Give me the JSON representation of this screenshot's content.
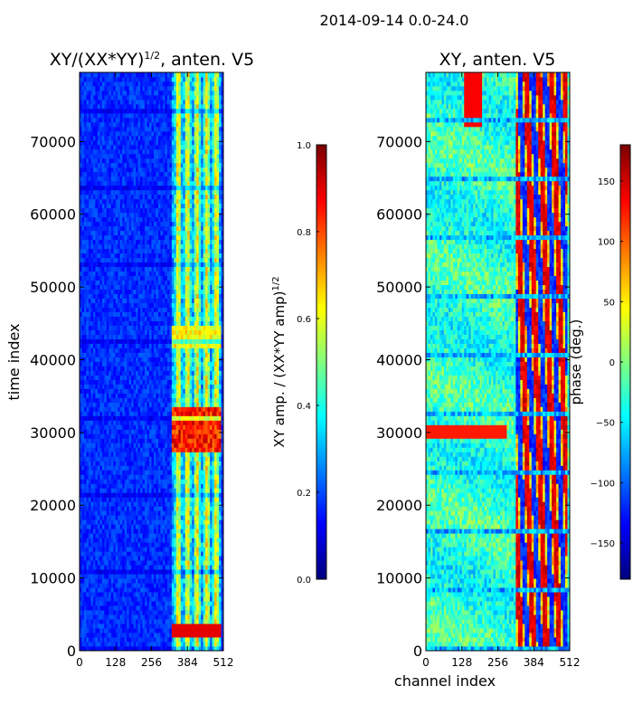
{
  "figure": {
    "suptitle": "2014-09-14 0.0-24.0"
  },
  "chart_data": [
    {
      "type": "heatmap",
      "title_main": "XY/(XX*YY)",
      "title_sup": "1/2",
      "title_rest": ", anten. V5",
      "xlabel": "",
      "ylabel": "time index",
      "xlim": [
        0,
        512
      ],
      "ylim": [
        0,
        79500
      ],
      "xticks": [
        0,
        128,
        256,
        384,
        512
      ],
      "xtick_labels": [
        "0",
        "128",
        "256",
        "384",
        "512"
      ],
      "yticks": [
        0,
        10000,
        20000,
        30000,
        40000,
        50000,
        60000,
        70000
      ],
      "ytick_labels": [
        "0",
        "10000",
        "20000",
        "30000",
        "40000",
        "50000",
        "60000",
        "70000"
      ],
      "colorscale": "jet",
      "colorbar": {
        "label_main": "XY amp. / (XX*YY amp)",
        "label_sup": "1/2",
        "range": [
          0.0,
          1.0
        ],
        "ticks": [
          0.0,
          0.2,
          0.4,
          0.6,
          0.8,
          1.0
        ],
        "tick_labels": [
          "0.0",
          "0.2",
          "0.4",
          "0.6",
          "0.8",
          "1.0"
        ]
      }
    },
    {
      "type": "heatmap",
      "title_main": "XY, anten. V5",
      "xlabel": "channel index",
      "ylabel": "",
      "xlim": [
        0,
        512
      ],
      "ylim": [
        0,
        79500
      ],
      "xticks": [
        0,
        128,
        256,
        384,
        512
      ],
      "xtick_labels": [
        "0",
        "128",
        "256",
        "384",
        "512"
      ],
      "yticks": [
        0,
        10000,
        20000,
        30000,
        40000,
        50000,
        60000,
        70000
      ],
      "ytick_labels": [
        "0",
        "10000",
        "20000",
        "30000",
        "40000",
        "50000",
        "60000",
        "70000"
      ],
      "colorscale": "jet",
      "colorbar": {
        "label_main": "phase (deg.)",
        "range": [
          -180,
          180
        ],
        "ticks": [
          -150,
          -100,
          -50,
          0,
          50,
          100,
          150
        ],
        "tick_labels": [
          "−150",
          "−100",
          "−50",
          "0",
          "50",
          "100",
          "150"
        ]
      }
    }
  ]
}
